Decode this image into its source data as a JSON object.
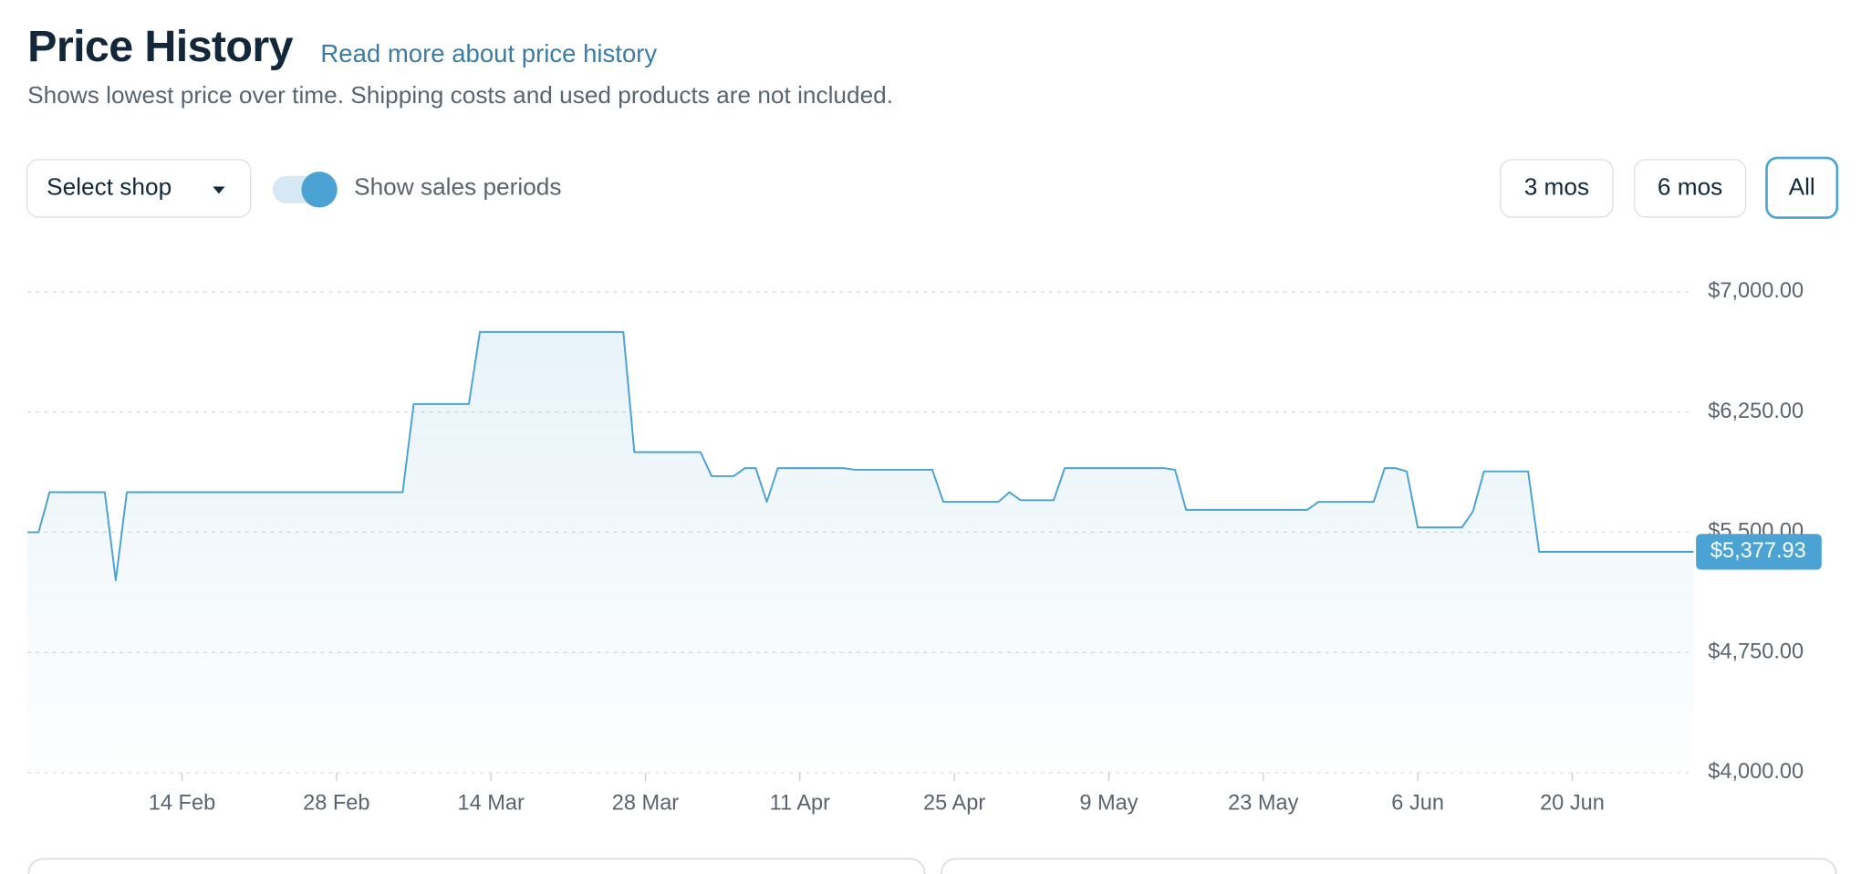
{
  "header": {
    "title": "Price History",
    "link": "Read more about price history",
    "subtitle": "Shows lowest price over time. Shipping costs and used products are not included."
  },
  "controls": {
    "shop_select": "Select shop",
    "sales_toggle": {
      "label": "Show sales periods",
      "on": true
    },
    "ranges": [
      "3 mos",
      "6 mos",
      "All"
    ],
    "selected": "All"
  },
  "chart_data": {
    "type": "line",
    "x": [
      "31 Jan",
      "1 Feb",
      "2 Feb",
      "7 Feb",
      "8 Feb",
      "9 Feb",
      "6 Mar",
      "7 Mar",
      "12 Mar",
      "13 Mar",
      "26 Mar",
      "27 Mar",
      "2 Apr",
      "3 Apr",
      "5 Apr",
      "6 Apr",
      "7 Apr",
      "8 Apr",
      "9 Apr",
      "15 Apr",
      "16 Apr",
      "23 Apr",
      "24 Apr",
      "29 Apr",
      "30 Apr",
      "1 May",
      "4 May",
      "5 May",
      "14 May",
      "15 May",
      "16 May",
      "27 May",
      "28 May",
      "2 Jun",
      "3 Jun",
      "4 Jun",
      "5 Jun",
      "6 Jun",
      "10 Jun",
      "11 Jun",
      "12 Jun",
      "16 Jun",
      "17 Jun",
      "1 Jul"
    ],
    "series": [
      {
        "color": "#4ba3d3",
        "values": [
          5500,
          5500,
          5750,
          5750,
          5200,
          5750,
          5750,
          6300,
          6300,
          6750,
          6750,
          6000,
          6000,
          5850,
          5850,
          5900,
          5900,
          5690,
          5900,
          5900,
          5890,
          5890,
          5690,
          5690,
          5750,
          5700,
          5700,
          5900,
          5900,
          5890,
          5640,
          5640,
          5690,
          5690,
          5900,
          5900,
          5880,
          5530,
          5530,
          5630,
          5880,
          5880,
          5377.93,
          5377.93
        ],
        "value_labels": [
          null,
          null,
          null,
          null,
          null,
          null,
          null,
          null,
          null,
          null,
          null,
          null,
          null,
          null,
          null,
          null,
          null,
          null,
          null,
          null,
          null,
          null,
          null,
          null,
          null,
          null,
          null,
          null,
          null,
          null,
          null,
          null,
          null,
          null,
          null,
          null,
          null,
          null,
          null,
          null,
          null,
          null,
          null,
          "$5,377.93"
        ]
      }
    ],
    "xlim": [
      "31 Jan",
      "1 Jul"
    ],
    "xticks": [
      "14 Feb",
      "28 Feb",
      "14 Mar",
      "28 Mar",
      "11 Apr",
      "25 Apr",
      "9 May",
      "23 May",
      "6 Jun",
      "20 Jun"
    ],
    "ylim": [
      4000,
      7000
    ],
    "yticks": [
      {
        "value": 4000,
        "label": "$4,000.00"
      },
      {
        "value": 4750,
        "label": "$4,750.00"
      },
      {
        "value": 5500,
        "label": "$5,500.00"
      },
      {
        "value": 6250,
        "label": "$6,250.00"
      },
      {
        "value": 7000,
        "label": "$7,000.00"
      }
    ],
    "grid": true
  }
}
